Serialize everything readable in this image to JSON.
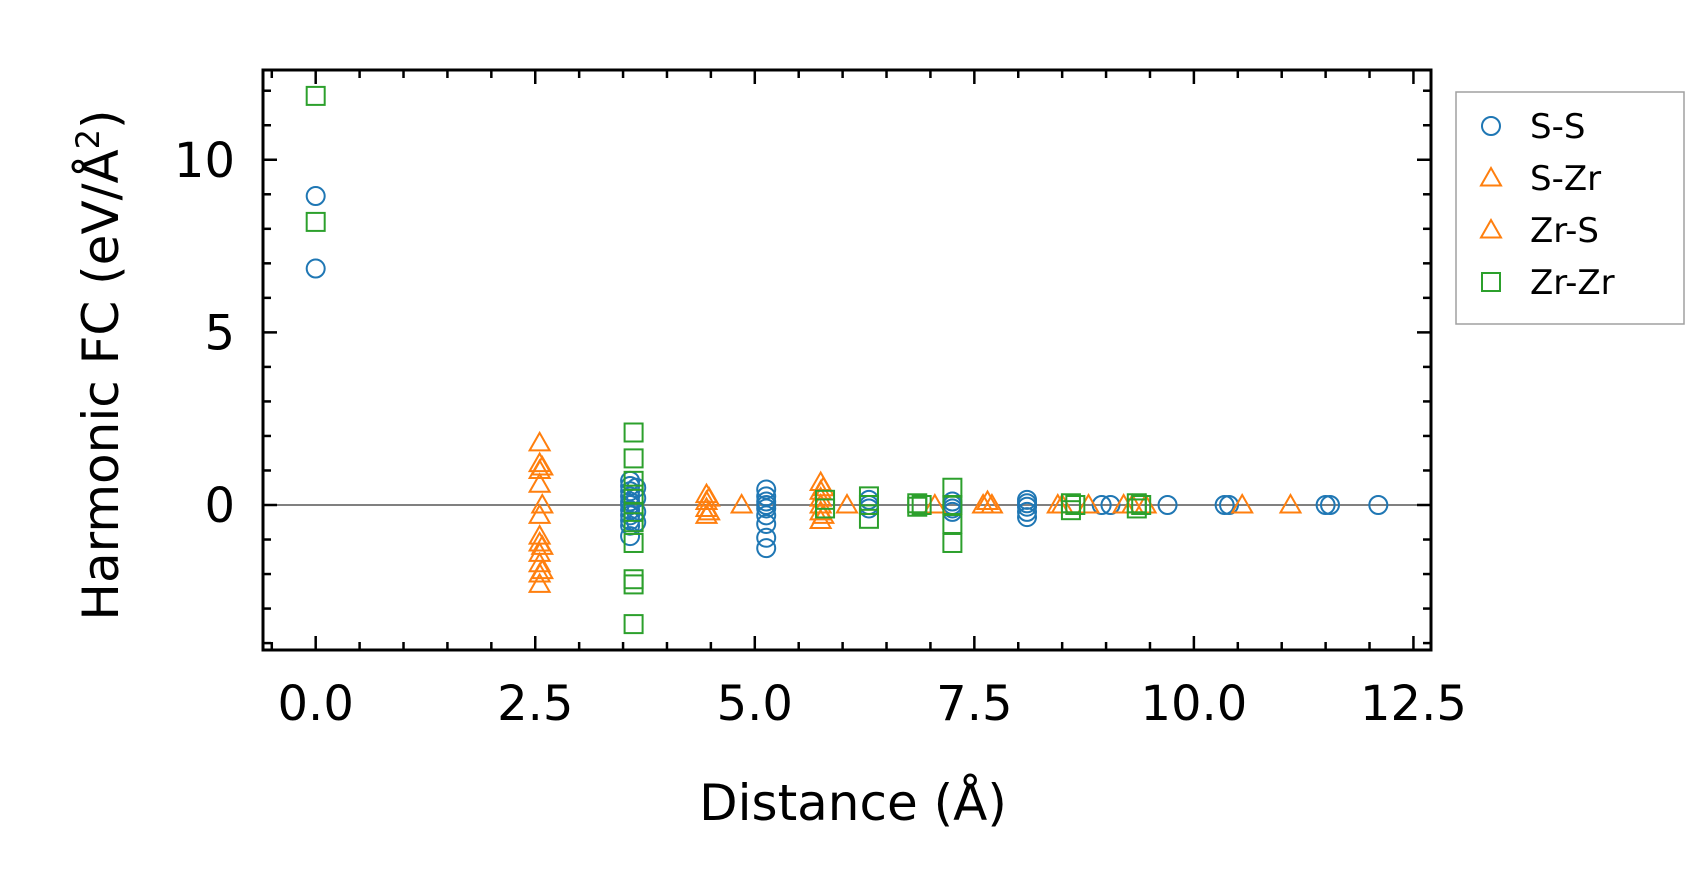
{
  "chart_data": {
    "type": "scatter",
    "title": "",
    "xlabel": "Distance (Å)",
    "ylabel": "Harmonic FC (eV/Å",
    "ylabel_sup": "2",
    "ylabel_close": ")",
    "xlim": [
      -0.6,
      12.7
    ],
    "ylim": [
      -4.2,
      12.6
    ],
    "xticks": [
      0.0,
      2.5,
      5.0,
      7.5,
      10.0,
      12.5
    ],
    "xtick_labels": [
      "0.0",
      "2.5",
      "5.0",
      "7.5",
      "10.0",
      "12.5"
    ],
    "yticks": [
      0,
      5,
      10
    ],
    "ytick_labels": [
      "0",
      "5",
      "10"
    ],
    "zero_line": 0,
    "legend_position": "outside-right",
    "series": [
      {
        "name": "S-S",
        "marker": "circle",
        "color": "#1f77b4",
        "points": [
          [
            0,
            8.95
          ],
          [
            0,
            6.85
          ],
          [
            3.58,
            0.7
          ],
          [
            3.58,
            0.55
          ],
          [
            3.58,
            0.4
          ],
          [
            3.58,
            0.25
          ],
          [
            3.58,
            0.1
          ],
          [
            3.58,
            0.0
          ],
          [
            3.58,
            -0.15
          ],
          [
            3.58,
            -0.3
          ],
          [
            3.58,
            -0.45
          ],
          [
            3.58,
            -0.6
          ],
          [
            3.58,
            -0.9
          ],
          [
            3.65,
            0.5
          ],
          [
            3.65,
            0.2
          ],
          [
            3.65,
            -0.2
          ],
          [
            3.65,
            -0.5
          ],
          [
            5.13,
            0.45
          ],
          [
            5.13,
            0.25
          ],
          [
            5.13,
            0.1
          ],
          [
            5.13,
            0.0
          ],
          [
            5.13,
            -0.1
          ],
          [
            5.13,
            -0.3
          ],
          [
            5.13,
            -0.55
          ],
          [
            5.13,
            -0.95
          ],
          [
            5.13,
            -1.25
          ],
          [
            6.3,
            0.15
          ],
          [
            6.3,
            0.0
          ],
          [
            6.3,
            -0.1
          ],
          [
            7.25,
            0.1
          ],
          [
            7.25,
            0.0
          ],
          [
            7.25,
            -0.1
          ],
          [
            7.25,
            -0.2
          ],
          [
            8.1,
            0.15
          ],
          [
            8.1,
            0.05
          ],
          [
            8.1,
            -0.05
          ],
          [
            8.1,
            -0.2
          ],
          [
            8.1,
            -0.35
          ],
          [
            8.95,
            0.0
          ],
          [
            9.05,
            0.0
          ],
          [
            9.7,
            0.0
          ],
          [
            10.35,
            0.0
          ],
          [
            10.4,
            0.0
          ],
          [
            11.5,
            0.0
          ],
          [
            11.55,
            0.0
          ],
          [
            12.1,
            0.0
          ]
        ]
      },
      {
        "name": "S-Zr",
        "marker": "triangle",
        "color": "#ff7f0e",
        "points": [
          [
            2.55,
            1.8
          ],
          [
            2.55,
            1.2
          ],
          [
            2.55,
            1.0
          ],
          [
            2.55,
            0.6
          ],
          [
            2.55,
            -0.3
          ],
          [
            2.55,
            -0.9
          ],
          [
            2.55,
            -1.1
          ],
          [
            2.55,
            -1.4
          ],
          [
            2.55,
            -1.7
          ],
          [
            2.55,
            -2.0
          ],
          [
            2.55,
            -2.3
          ],
          [
            4.45,
            0.3
          ],
          [
            4.45,
            0.1
          ],
          [
            4.45,
            -0.1
          ],
          [
            4.45,
            -0.3
          ],
          [
            4.85,
            0.0
          ],
          [
            5.75,
            0.65
          ],
          [
            5.75,
            0.4
          ],
          [
            5.75,
            0.2
          ],
          [
            5.75,
            0.0
          ],
          [
            5.75,
            -0.2
          ],
          [
            5.75,
            -0.45
          ],
          [
            6.05,
            0.0
          ],
          [
            7.05,
            0.0
          ],
          [
            7.6,
            0.0
          ],
          [
            7.7,
            0.0
          ],
          [
            8.45,
            0.0
          ],
          [
            8.8,
            0.0
          ],
          [
            9.2,
            0.0
          ],
          [
            9.45,
            0.0
          ],
          [
            10.55,
            0.0
          ],
          [
            11.1,
            0.0
          ]
        ]
      },
      {
        "name": "Zr-S",
        "marker": "triangle",
        "color": "#ff7f0e",
        "points": [
          [
            2.58,
            1.1
          ],
          [
            2.58,
            0.0
          ],
          [
            2.58,
            -1.2
          ],
          [
            2.58,
            -1.9
          ],
          [
            4.48,
            0.2
          ],
          [
            4.48,
            -0.2
          ],
          [
            5.78,
            0.5
          ],
          [
            5.78,
            -0.3
          ],
          [
            7.65,
            0.1
          ],
          [
            8.5,
            0.0
          ],
          [
            9.3,
            0.0
          ]
        ]
      },
      {
        "name": "Zr-Zr",
        "marker": "square",
        "color": "#2ca02c",
        "points": [
          [
            0,
            11.85
          ],
          [
            0,
            8.2
          ],
          [
            3.62,
            2.1
          ],
          [
            3.62,
            1.35
          ],
          [
            3.62,
            0.7
          ],
          [
            3.62,
            0.3
          ],
          [
            3.62,
            -0.2
          ],
          [
            3.62,
            -0.5
          ],
          [
            3.62,
            -1.1
          ],
          [
            3.62,
            -2.15
          ],
          [
            3.62,
            -2.3
          ],
          [
            3.62,
            -3.45
          ],
          [
            5.8,
            0.15
          ],
          [
            5.8,
            -0.1
          ],
          [
            6.3,
            0.25
          ],
          [
            6.3,
            0.0
          ],
          [
            6.3,
            -0.4
          ],
          [
            6.85,
            0.05
          ],
          [
            6.85,
            -0.05
          ],
          [
            6.9,
            0.0
          ],
          [
            7.25,
            0.5
          ],
          [
            7.25,
            0.0
          ],
          [
            7.25,
            -0.55
          ],
          [
            7.25,
            -1.1
          ],
          [
            8.6,
            0.05
          ],
          [
            8.6,
            -0.15
          ],
          [
            8.65,
            0.0
          ],
          [
            9.35,
            0.05
          ],
          [
            9.35,
            -0.1
          ],
          [
            9.4,
            0.0
          ]
        ]
      }
    ]
  }
}
